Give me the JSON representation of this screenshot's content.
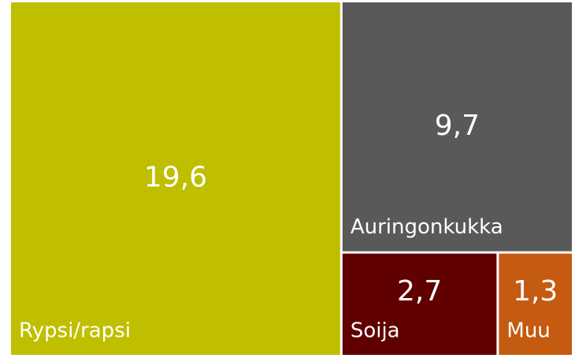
{
  "chart_data": {
    "type": "treemap",
    "categories": [
      "Rypsi/rapsi",
      "Auringonkukka",
      "Soija",
      "Muu"
    ],
    "values": [
      19.6,
      9.7,
      2.7,
      1.3
    ],
    "value_labels": [
      "19,6",
      "9,7",
      "2,7",
      "1,3"
    ],
    "colors": [
      "#bfbf00",
      "#595959",
      "#600000",
      "#c55a11"
    ]
  }
}
